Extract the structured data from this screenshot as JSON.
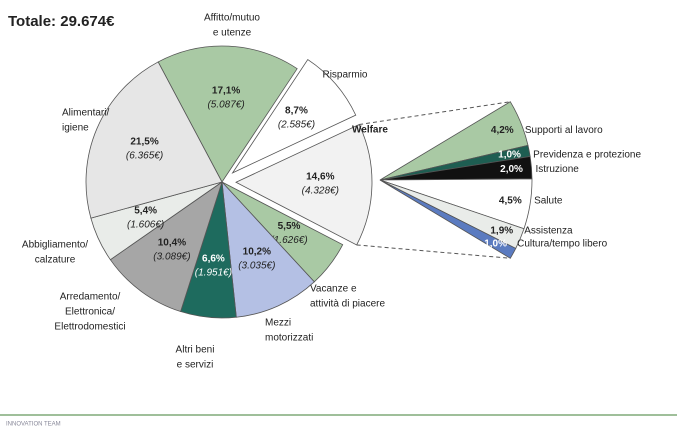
{
  "chart_data": {
    "type": "pie-of-pie",
    "title": "Totale: 29.674€",
    "categories": [
      [
        "Affitto/mutuo",
        "e utenze"
      ],
      [
        "Risparmio"
      ],
      [
        "Welfare"
      ],
      [
        "Vacanze e",
        "attività di piacere"
      ],
      [
        "Mezzi",
        "motorizzati"
      ],
      [
        "Altri beni",
        "e servizi"
      ],
      [
        "Arredamento/",
        "Elettronica/",
        "Elettrodomestici"
      ],
      [
        "Abbigliamento/",
        "calzature"
      ],
      [
        "Alimentari/",
        "igiene"
      ]
    ],
    "values": [
      17.1,
      8.7,
      14.6,
      5.5,
      10.2,
      6.6,
      10.4,
      5.4,
      21.5
    ],
    "value_labels": [
      "17,1%",
      "8,7%",
      "14,6%",
      "5,5%",
      "10,2%",
      "6,6%",
      "10,4%",
      "5,4%",
      "21,5%"
    ],
    "amount_labels": [
      "(5.087€)",
      "(2.585€)",
      "(4.328€)",
      "(1.626€)",
      "(3.035€)",
      "(1.951€)",
      "(3.089€)",
      "(1.606€)",
      "(6.365€)"
    ],
    "colors": [
      "#a9c9a4",
      "#ffffff",
      "#f2f2f2",
      "#a9c9a4",
      "#b4c0e4",
      "#1e6b5e",
      "#a6a6a6",
      "#e9ece9",
      "#e6e6e6"
    ],
    "exploded": [
      1,
      2
    ],
    "sub_categories": [
      "Supporti  al lavoro",
      "Previdenza e protezione",
      "Istruzione",
      "Salute",
      "Assistenza",
      "Cultura/tempo libero"
    ],
    "sub_values": [
      4.2,
      1.0,
      2.0,
      4.5,
      1.9,
      1.0
    ],
    "sub_value_labels": [
      "4,2%",
      "1,0%",
      "2,0%",
      "4,5%",
      "1,9%",
      "1,0%"
    ],
    "sub_colors": [
      "#a9c9a4",
      "#1e5e52",
      "#111111",
      "#ffffff",
      "#e9ece9",
      "#5b7bc0"
    ],
    "footer": "INNOVATION TEAM"
  }
}
